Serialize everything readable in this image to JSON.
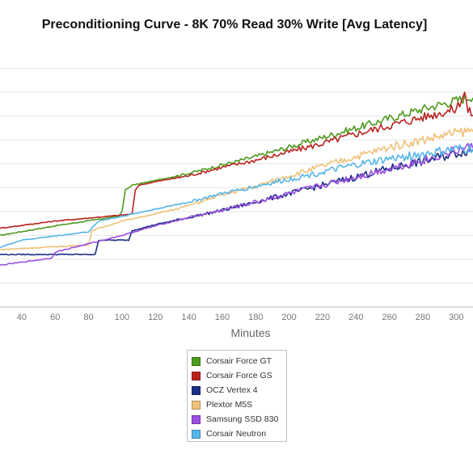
{
  "chart_data": {
    "type": "line",
    "title": "Preconditioning Curve - 8K 70% Read 30% Write [Avg Latency]",
    "xlabel": "Minutes",
    "ylabel": "",
    "xlim": [
      27,
      310
    ],
    "ylim": [
      0,
      11
    ],
    "x_ticks": [
      40,
      60,
      80,
      100,
      120,
      140,
      160,
      180,
      200,
      220,
      240,
      260,
      280,
      300
    ],
    "y_gridlines": [
      1,
      2,
      3,
      4,
      5,
      6,
      7,
      8,
      9,
      10
    ],
    "grid": true,
    "legend_position": "bottom-center",
    "series": [
      {
        "name": "Corsair Force GT",
        "color": "#4d9a1e",
        "x": [
          27,
          60,
          98,
          100,
          102,
          106,
          120,
          140,
          160,
          180,
          200,
          220,
          240,
          260,
          280,
          300,
          310
        ],
        "y": [
          3.0,
          3.4,
          3.8,
          4.0,
          4.9,
          5.1,
          5.3,
          5.6,
          5.95,
          6.3,
          6.7,
          7.1,
          7.5,
          7.9,
          8.3,
          8.65,
          8.85
        ]
      },
      {
        "name": "Corsair Force GS",
        "color": "#b8231f",
        "x": [
          27,
          60,
          100,
          106,
          108,
          110,
          120,
          140,
          160,
          180,
          200,
          220,
          240,
          260,
          280,
          300,
          305,
          307,
          310
        ],
        "y": [
          3.3,
          3.6,
          3.85,
          3.9,
          4.9,
          5.1,
          5.25,
          5.5,
          5.85,
          6.15,
          6.5,
          6.85,
          7.25,
          7.6,
          7.95,
          8.3,
          9.0,
          8.2,
          8.1
        ]
      },
      {
        "name": "OCZ Vertex 4",
        "color": "#1a2f85",
        "x": [
          27,
          84,
          86,
          104,
          106,
          120,
          140,
          160,
          180,
          200,
          220,
          240,
          260,
          280,
          300,
          310
        ],
        "y": [
          2.2,
          2.2,
          2.8,
          2.8,
          3.2,
          3.45,
          3.75,
          4.05,
          4.4,
          4.75,
          5.1,
          5.45,
          5.8,
          6.1,
          6.45,
          6.6
        ]
      },
      {
        "name": "Plextor M5S",
        "color": "#efc078",
        "x": [
          27,
          80,
          82,
          100,
          120,
          140,
          160,
          180,
          200,
          220,
          240,
          260,
          280,
          300,
          310
        ],
        "y": [
          2.4,
          2.6,
          3.2,
          3.6,
          3.9,
          4.25,
          4.7,
          5.05,
          5.5,
          5.9,
          6.3,
          6.7,
          7.0,
          7.3,
          7.4
        ]
      },
      {
        "name": "Samsung SSD 830",
        "color": "#9c4ee0",
        "x": [
          27,
          58,
          60,
          100,
          120,
          140,
          160,
          180,
          200,
          220,
          240,
          260,
          280,
          300,
          310
        ],
        "y": [
          1.75,
          2.05,
          2.3,
          3.0,
          3.4,
          3.75,
          4.05,
          4.4,
          4.75,
          5.1,
          5.45,
          5.8,
          6.15,
          6.55,
          6.7
        ]
      },
      {
        "name": "Corsair Neutron",
        "color": "#54b5e8",
        "x": [
          27,
          40,
          80,
          86,
          100,
          120,
          140,
          160,
          180,
          200,
          220,
          240,
          260,
          280,
          300,
          310
        ],
        "y": [
          2.5,
          2.8,
          3.15,
          3.6,
          3.8,
          4.1,
          4.4,
          4.75,
          5.05,
          5.35,
          5.65,
          5.95,
          6.2,
          6.4,
          6.6,
          6.65
        ]
      }
    ]
  },
  "colors": {
    "grid": "#e6e6e6",
    "axis_line": "#bbbbbb"
  }
}
